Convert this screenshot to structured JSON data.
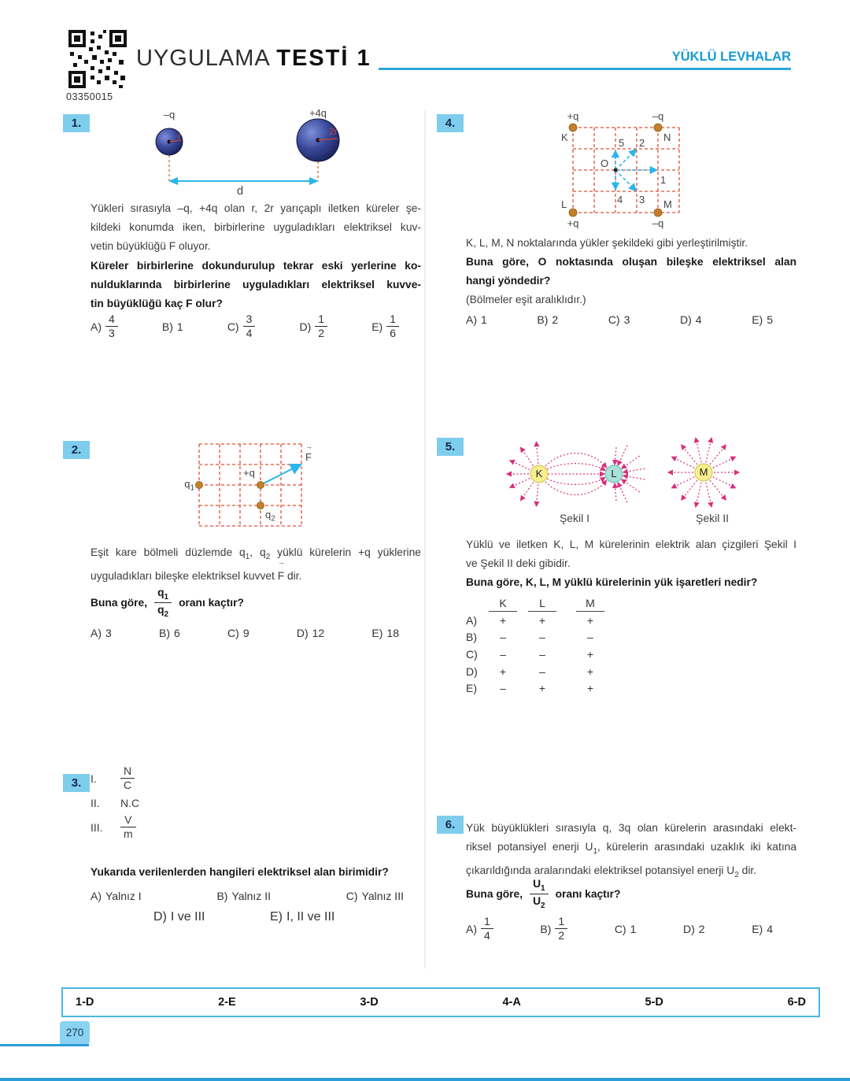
{
  "header": {
    "qr_code": "03350015",
    "title_regular": "UYGULAMA",
    "title_bold": "TESTİ 1",
    "topic": "YÜKLÜ LEVHALAR"
  },
  "q1": {
    "number": "1.",
    "figure": {
      "charge_small": "–q",
      "radius_small": "r",
      "charge_big": "+4q",
      "radius_big": "2r",
      "distance": "d"
    },
    "lines": [
      "Yükleri sırasıyla –q, +4q olan r, 2r yarıçaplı iletken küreler şe-",
      "kildeki konumda iken, birbirlerine uyguladıkları elektriksel kuv-",
      "vetin büyüklüğü F oluyor."
    ],
    "bold_lines": [
      "Küreler birbirlerine dokundurulup tekrar eski yerlerine ko-",
      "nulduklarında birbirlerine uyguladıkları elektriksel kuvve-",
      "tin büyüklüğü kaç F olur?"
    ],
    "options": [
      {
        "label": "A)",
        "num": "4",
        "den": "3"
      },
      {
        "label": "B)",
        "value": "1"
      },
      {
        "label": "C)",
        "num": "3",
        "den": "4"
      },
      {
        "label": "D)",
        "num": "1",
        "den": "2"
      },
      {
        "label": "E)",
        "num": "1",
        "den": "6"
      }
    ]
  },
  "q2": {
    "number": "2.",
    "figure": {
      "q1": "q<sub>1</sub>",
      "plus_q": "+q",
      "q2": "q<sub>2</sub>",
      "force": "<span class=\"vec\">F</span>"
    },
    "lines": [
      "Eşit kare bölmeli düzlemde q<sub>1</sub>, q<sub>2</sub> yüklü kürelerin +q yüklerine",
      "uyguladıkları bileşke elektriksel kuvvet <span class=\"vec\">F</span> dir."
    ],
    "question_prefix": "Buna göre,",
    "frac_num": "q<sub>1</sub>",
    "frac_den": "q<sub>2</sub>",
    "question_suffix": "oranı kaçtır?",
    "options": [
      {
        "label": "A)",
        "value": "3"
      },
      {
        "label": "B)",
        "value": "6"
      },
      {
        "label": "C)",
        "value": "9"
      },
      {
        "label": "D)",
        "value": "12"
      },
      {
        "label": "E)",
        "value": "18"
      }
    ]
  },
  "q3": {
    "number": "3.",
    "items": [
      {
        "roman": "I.",
        "num": "N",
        "den": "C"
      },
      {
        "roman": "II.",
        "value": "N.C"
      },
      {
        "roman": "III.",
        "num": "V",
        "den": "m"
      }
    ],
    "question": "Yukarıda verilenlerden hangileri elektriksel alan birimidir?",
    "options_row1": [
      {
        "label": "A)",
        "value": "Yalnız I"
      },
      {
        "label": "B)",
        "value": "Yalnız II"
      },
      {
        "label": "C)",
        "value": "Yalnız III"
      }
    ],
    "options_row2": [
      {
        "label": "D)",
        "value": "I ve III"
      },
      {
        "label": "E)",
        "value": "I, II ve III"
      }
    ]
  },
  "q4": {
    "number": "4.",
    "figure": {
      "k": "K",
      "l": "L",
      "m": "M",
      "n": "N",
      "o": "O",
      "charge_k": "+q",
      "charge_n": "–q",
      "charge_l": "+q",
      "charge_m": "–q",
      "dir1": "1",
      "dir2": "2",
      "dir3": "3",
      "dir4": "4",
      "dir5": "5"
    },
    "lines": [
      "K, L, M, N noktalarında yükler şekildeki gibi yerleştirilmiştir."
    ],
    "bold_lines": [
      "Buna göre, O noktasında oluşan bileşke elektriksel alan",
      "hangi yöndedir?"
    ],
    "note": "(Bölmeler eşit aralıklıdır.)",
    "options": [
      {
        "label": "A)",
        "value": "1"
      },
      {
        "label": "B)",
        "value": "2"
      },
      {
        "label": "C)",
        "value": "3"
      },
      {
        "label": "D)",
        "value": "4"
      },
      {
        "label": "E)",
        "value": "5"
      }
    ]
  },
  "q5": {
    "number": "5.",
    "figure": {
      "k": "K",
      "l": "L",
      "m": "M",
      "caption1": "Şekil I",
      "caption2": "Şekil II"
    },
    "lines": [
      "Yüklü ve iletken K, L, M kürelerinin elektrik alan çizgileri Şekil I",
      "ve Şekil II deki gibidir."
    ],
    "bold_lines": [
      "Buna göre, K, L, M yüklü kürelerinin yük işaretleri nedir?"
    ],
    "table": {
      "headers": [
        "K",
        "L",
        "M"
      ],
      "rows": [
        {
          "label": "A)",
          "cells": [
            "+",
            "+",
            "+"
          ]
        },
        {
          "label": "B)",
          "cells": [
            "–",
            "–",
            "–"
          ]
        },
        {
          "label": "C)",
          "cells": [
            "–",
            "–",
            "+"
          ]
        },
        {
          "label": "D)",
          "cells": [
            "+",
            "–",
            "+"
          ]
        },
        {
          "label": "E)",
          "cells": [
            "–",
            "+",
            "+"
          ]
        }
      ]
    }
  },
  "q6": {
    "number": "6.",
    "lines": [
      "Yük büyüklükleri sırasıyla q, 3q olan kürelerin arasındaki elekt-",
      "riksel potansiyel enerji U<sub>1</sub>, kürelerin arasındaki uzaklık iki katına",
      "çıkarıldığında aralarındaki elektriksel potansiyel enerji U<sub>2</sub> dir."
    ],
    "question_prefix": "Buna göre,",
    "frac_num": "U<sub>1</sub>",
    "frac_den": "U<sub>2</sub>",
    "question_suffix": "oranı kaçtır?",
    "options": [
      {
        "label": "A)",
        "num": "1",
        "den": "4"
      },
      {
        "label": "B)",
        "num": "1",
        "den": "2"
      },
      {
        "label": "C)",
        "value": "1"
      },
      {
        "label": "D)",
        "value": "2"
      },
      {
        "label": "E)",
        "value": "4"
      }
    ]
  },
  "answer_key": {
    "items": [
      "1-D",
      "2-E",
      "3-D",
      "4-A",
      "5-D",
      "6-D"
    ]
  },
  "page": {
    "number": "270"
  },
  "colors": {
    "accent_blue": "#2da7dc",
    "badge_blue": "#7fcdec",
    "topic_blue": "#179bd7",
    "grid_red": "#e05038",
    "dot_orange": "#c57f2a",
    "arrow_cyan": "#2cb5e8",
    "field_magenta": "#db2e7b"
  }
}
